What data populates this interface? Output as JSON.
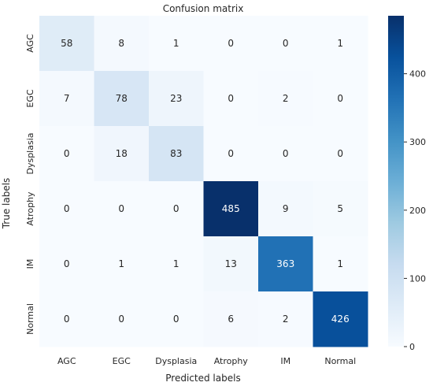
{
  "chart_data": {
    "type": "heatmap",
    "title": "Confusion matrix",
    "xlabel": "Predicted labels",
    "ylabel": "True labels",
    "x_categories": [
      "AGC",
      "EGC",
      "Dysplasia",
      "Atrophy",
      "IM",
      "Normal"
    ],
    "y_categories": [
      "AGC",
      "EGC",
      "Dysplasia",
      "Atrophy",
      "IM",
      "Normal"
    ],
    "values": [
      [
        58,
        8,
        1,
        0,
        0,
        1
      ],
      [
        7,
        78,
        23,
        0,
        2,
        0
      ],
      [
        0,
        18,
        83,
        0,
        0,
        0
      ],
      [
        0,
        0,
        0,
        485,
        9,
        5
      ],
      [
        0,
        1,
        1,
        13,
        363,
        1
      ],
      [
        0,
        0,
        0,
        6,
        2,
        426
      ]
    ],
    "colorbar": {
      "min": 0,
      "max": 485,
      "ticks": [
        0,
        100,
        200,
        300,
        400
      ],
      "colormap": "Blues"
    },
    "colors": {
      "low": "#f7fbff",
      "high": "#08306b"
    }
  }
}
